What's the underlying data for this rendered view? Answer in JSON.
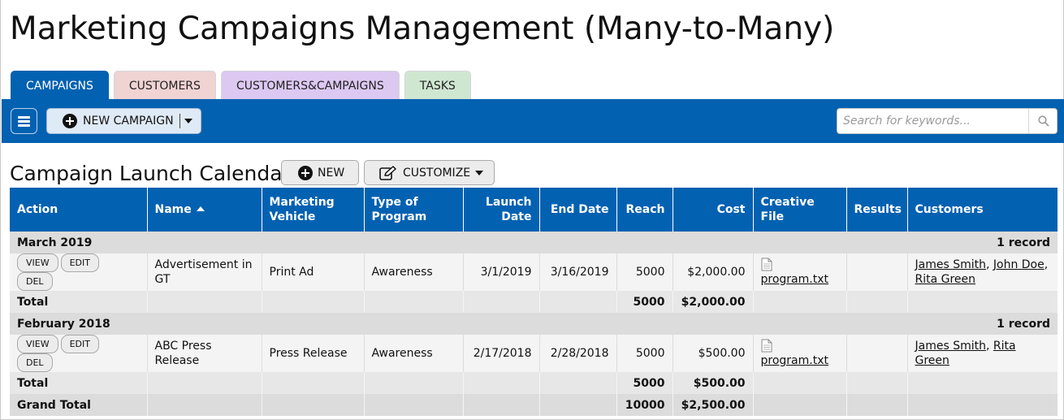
{
  "app": {
    "title": "Marketing Campaigns Management (Many-to-Many)"
  },
  "tabs": [
    {
      "label": "CAMPAIGNS",
      "active": true,
      "color": "#0361b1"
    },
    {
      "label": "CUSTOMERS",
      "active": false,
      "color": "#f0d3d3"
    },
    {
      "label": "CUSTOMERS&CAMPAIGNS",
      "active": false,
      "color": "#dcc8f1"
    },
    {
      "label": "TASKS",
      "active": false,
      "color": "#cfe7d1"
    }
  ],
  "toolbar": {
    "menu_icon": "hamburger-icon",
    "new_campaign_label": "NEW CAMPAIGN",
    "search": {
      "placeholder": "Search for keywords...",
      "value": "",
      "icon": "search-icon"
    }
  },
  "report": {
    "title": "Campaign Launch Calendar",
    "new_label": "NEW",
    "customize_label": "CUSTOMIZE"
  },
  "table": {
    "columns": [
      "Action",
      "Name",
      "Marketing Vehicle",
      "Type of Program",
      "Launch Date",
      "End Date",
      "Reach",
      "Cost",
      "Creative File",
      "Results",
      "Customers"
    ],
    "sorted_column": "Name",
    "sort_direction": "ascending",
    "row_actions": [
      "VIEW",
      "EDIT",
      "DEL"
    ],
    "groups": [
      {
        "label": "March 2019",
        "count_label": "1 record",
        "rows": [
          {
            "name": "Advertisement in GT",
            "vehicle": "Print Ad",
            "program": "Awareness",
            "launch": "3/1/2019",
            "end": "3/16/2019",
            "reach": "5000",
            "cost": "$2,000.00",
            "file": "program.txt",
            "results": "",
            "customers": [
              "James Smith",
              "John Doe",
              "Rita Green"
            ]
          }
        ],
        "total": {
          "label": "Total",
          "reach": "5000",
          "cost": "$2,000.00"
        }
      },
      {
        "label": "February 2018",
        "count_label": "1 record",
        "rows": [
          {
            "name": "ABC Press Release",
            "vehicle": "Press Release",
            "program": "Awareness",
            "launch": "2/17/2018",
            "end": "2/28/2018",
            "reach": "5000",
            "cost": "$500.00",
            "file": "program.txt",
            "results": "",
            "customers": [
              "James Smith",
              "Rita Green"
            ]
          }
        ],
        "total": {
          "label": "Total",
          "reach": "5000",
          "cost": "$500.00"
        }
      }
    ],
    "grand_total": {
      "label": "Grand Total",
      "reach": "10000",
      "cost": "$2,500.00"
    }
  }
}
